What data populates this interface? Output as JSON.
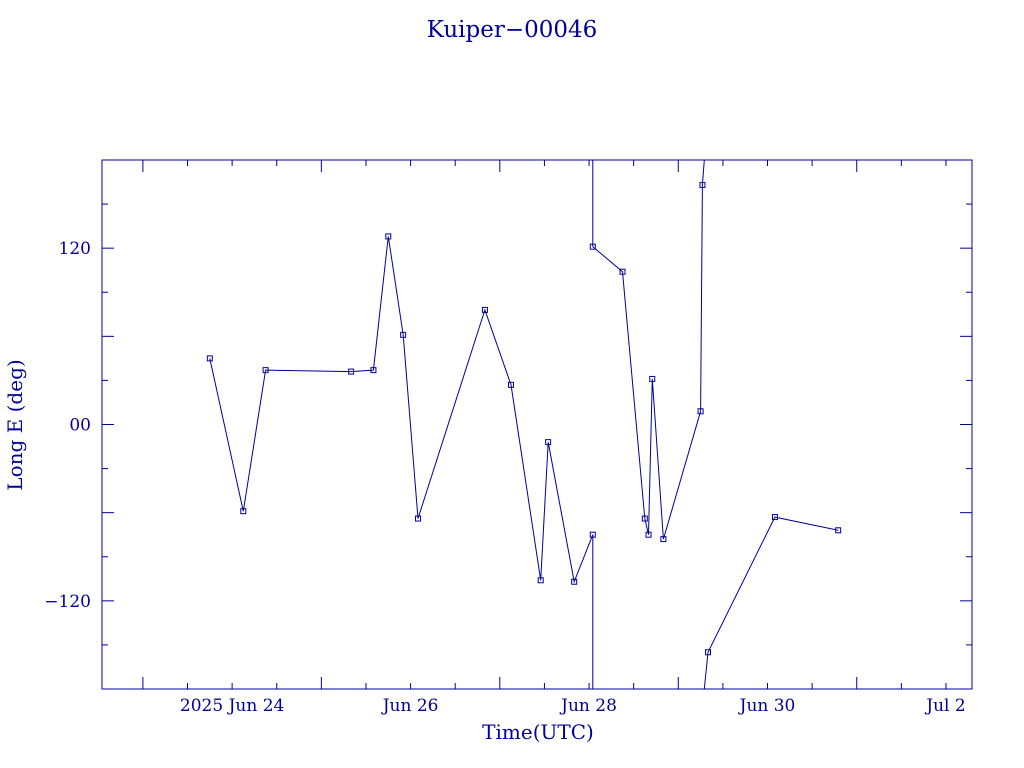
{
  "chart_data": {
    "type": "line",
    "title": "Kuiper−00046",
    "xlabel": "Time(UTC)",
    "ylabel": "Long E (deg)",
    "x_ticks": [
      {
        "value": "2025-06-24",
        "label": "2025 Jun 24"
      },
      {
        "value": "2025-06-26",
        "label": "Jun 26"
      },
      {
        "value": "2025-06-28",
        "label": "Jun 28"
      },
      {
        "value": "2025-06-30",
        "label": "Jun 30"
      },
      {
        "value": "2025-07-02",
        "label": "Jul  2"
      }
    ],
    "y_ticks": [
      {
        "value": 120,
        "label": "120"
      },
      {
        "value": 0,
        "label": "00"
      },
      {
        "value": -120,
        "label": "−120"
      }
    ],
    "xlim": [
      "2025-06-22T13:00",
      "2025-07-02T07:00"
    ],
    "ylim": [
      -180,
      180
    ],
    "grid": false,
    "color": "#00009a",
    "series": [
      {
        "points": [
          {
            "x": "2025-06-23T18:00",
            "y": 45
          },
          {
            "x": "2025-06-24T03:00",
            "y": -59
          },
          {
            "x": "2025-06-24T09:00",
            "y": 37
          },
          {
            "x": "2025-06-25T08:00",
            "y": 36
          },
          {
            "x": "2025-06-25T14:00",
            "y": 37
          },
          {
            "x": "2025-06-25T18:00",
            "y": 128
          },
          {
            "x": "2025-06-25T22:00",
            "y": 61
          },
          {
            "x": "2025-06-26T02:00",
            "y": -64
          },
          {
            "x": "2025-06-26T20:00",
            "y": 78
          },
          {
            "x": "2025-06-27T03:00",
            "y": 27
          },
          {
            "x": "2025-06-27T11:00",
            "y": -106
          },
          {
            "x": "2025-06-27T13:00",
            "y": -12
          },
          {
            "x": "2025-06-27T20:00",
            "y": -107
          },
          {
            "x": "2025-06-28T01:00",
            "y": -75
          },
          {
            "x": "2025-06-28T01:00",
            "y": -180
          },
          {
            "x": "2025-06-28T01:00",
            "y": 180
          },
          {
            "x": "2025-06-28T01:00",
            "y": 121
          },
          {
            "x": "2025-06-28T09:00",
            "y": 104
          },
          {
            "x": "2025-06-28T15:00",
            "y": -64
          },
          {
            "x": "2025-06-28T16:00",
            "y": -75
          },
          {
            "x": "2025-06-28T17:00",
            "y": 31
          },
          {
            "x": "2025-06-28T20:00",
            "y": -78
          },
          {
            "x": "2025-06-29T06:00",
            "y": 9
          },
          {
            "x": "2025-06-29T06:30",
            "y": 163
          },
          {
            "x": "2025-06-29T07:00",
            "y": 180
          },
          {
            "x": "2025-06-29T07:00",
            "y": -180
          },
          {
            "x": "2025-06-29T08:00",
            "y": -155
          },
          {
            "x": "2025-06-30T02:00",
            "y": -63
          },
          {
            "x": "2025-06-30T19:00",
            "y": -72
          }
        ]
      }
    ]
  }
}
